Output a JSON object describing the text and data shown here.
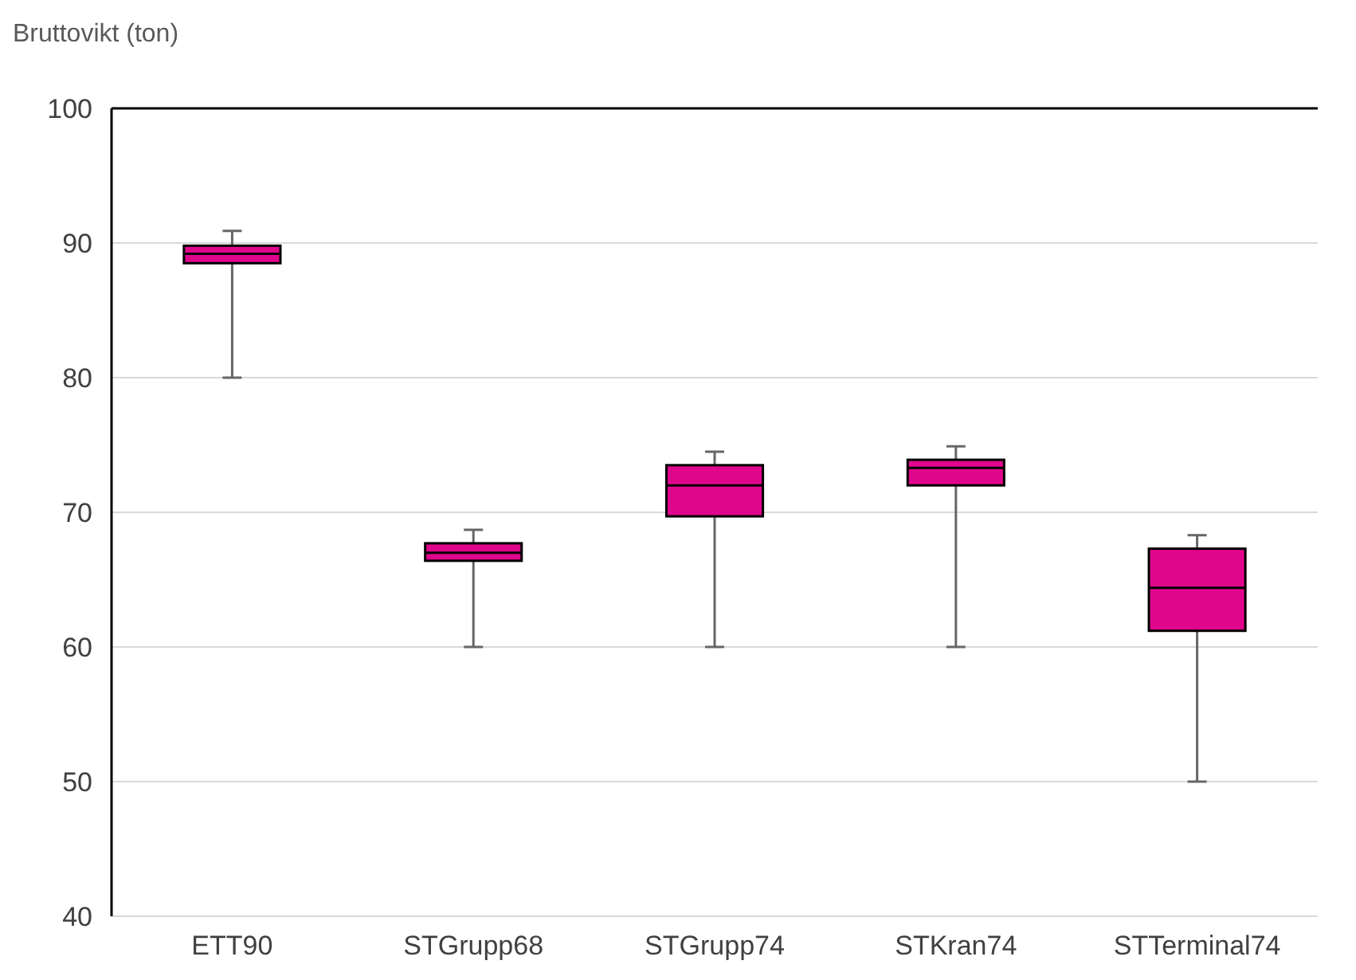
{
  "chart_data": {
    "type": "box",
    "ylabel": "Bruttovikt (ton)",
    "categories": [
      "ETT90",
      "STGrupp68",
      "STGrupp74",
      "STKran74",
      "STTerminal74"
    ],
    "boxes": [
      {
        "low": 80,
        "q1": 88.5,
        "median": 89.2,
        "q3": 89.8,
        "high": 90.9
      },
      {
        "low": 60,
        "q1": 66.4,
        "median": 67.0,
        "q3": 67.7,
        "high": 68.7
      },
      {
        "low": 60,
        "q1": 69.7,
        "median": 72.0,
        "q3": 73.5,
        "high": 74.5
      },
      {
        "low": 60,
        "q1": 72.0,
        "median": 73.3,
        "q3": 73.9,
        "high": 74.9
      },
      {
        "low": 50,
        "q1": 61.2,
        "median": 64.4,
        "q3": 67.3,
        "high": 68.3
      }
    ],
    "color": "#e0068c",
    "ylim": [
      40,
      100
    ],
    "yticks": [
      40,
      50,
      60,
      70,
      80,
      90,
      100
    ],
    "grid": "y"
  }
}
